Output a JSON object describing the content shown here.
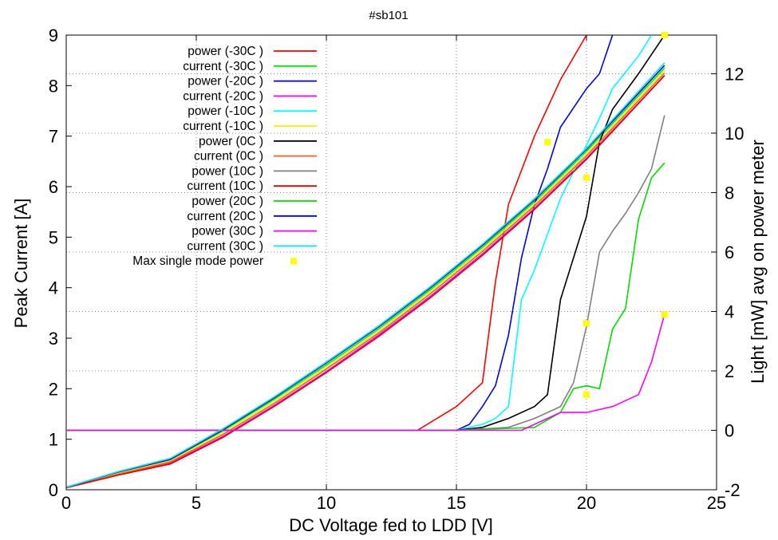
{
  "chart_data": {
    "type": "line",
    "title": "#sb101",
    "xlabel": "DC Voltage fed to LDD [V]",
    "ylabel": "Peak Current [A]",
    "y2label": "Light [mW] avg on power meter",
    "xlim": [
      0,
      25
    ],
    "ylim": [
      0,
      9
    ],
    "y2lim": [
      -2,
      13.3
    ],
    "xticks": [
      "0",
      "5",
      "10",
      "15",
      "20",
      "25"
    ],
    "yticks": [
      "0",
      "1",
      "2",
      "3",
      "4",
      "5",
      "6",
      "7",
      "8",
      "9"
    ],
    "y2ticks": [
      "-2",
      "0",
      "2",
      "4",
      "6",
      "8",
      "10",
      "12"
    ],
    "grid": true,
    "legend_position": "top-left",
    "series": [
      {
        "name": "power (-30C )",
        "color": "#ff0000",
        "axis": "y2",
        "x": [
          0,
          5,
          10,
          13.5,
          15,
          15.5,
          16,
          16.5,
          17,
          18,
          19,
          20
        ],
        "y": [
          0,
          0,
          0,
          0,
          0.8,
          1.2,
          1.6,
          5,
          7.6,
          9.9,
          11.8,
          13.3
        ]
      },
      {
        "name": "current (-30C )",
        "color": "#00ee00",
        "axis": "y1",
        "x": [
          0,
          2,
          4,
          6,
          8,
          10,
          12,
          14,
          16,
          18,
          20,
          23
        ],
        "y": [
          0.05,
          0.34,
          0.59,
          1.16,
          1.79,
          2.47,
          3.18,
          3.96,
          4.8,
          5.7,
          6.7,
          8.35
        ]
      },
      {
        "name": "power (-20C )",
        "color": "#0000ee",
        "axis": "y2",
        "x": [
          0,
          5,
          10,
          15,
          15.5,
          16,
          16.5,
          17,
          17.5,
          18,
          18.5,
          19,
          20,
          20.5,
          21
        ],
        "y": [
          0,
          0,
          0,
          0,
          0.2,
          0.8,
          1.5,
          3.2,
          5.8,
          7.6,
          8.8,
          10.2,
          11.5,
          12,
          13.3
        ]
      },
      {
        "name": "current (-20C )",
        "color": "#ff00ff",
        "axis": "y1",
        "x": [
          0,
          2,
          4,
          6,
          8,
          10,
          12,
          14,
          16,
          18,
          20,
          23
        ],
        "y": [
          0.04,
          0.3,
          0.53,
          1.05,
          1.67,
          2.34,
          3.06,
          3.83,
          4.67,
          5.57,
          6.56,
          8.2
        ]
      },
      {
        "name": "power (-10C )",
        "color": "#00ffff",
        "axis": "y2",
        "x": [
          0,
          5,
          10,
          15,
          16,
          16.5,
          17,
          17.5,
          18,
          18.5,
          19,
          20,
          20.5,
          21,
          22,
          22.5
        ],
        "y": [
          0,
          0,
          0,
          0,
          0.2,
          0.4,
          0.8,
          4.4,
          5.4,
          6.6,
          7.8,
          9.6,
          10.5,
          11.5,
          12.6,
          13.3
        ]
      },
      {
        "name": "current (-10C )",
        "color": "#f0f000",
        "axis": "y1",
        "x": [
          0,
          2,
          4,
          6,
          8,
          10,
          12,
          14,
          16,
          18,
          20,
          23
        ],
        "y": [
          0.05,
          0.33,
          0.57,
          1.13,
          1.75,
          2.43,
          3.14,
          3.92,
          4.76,
          5.66,
          6.65,
          8.3
        ]
      },
      {
        "name": "power (0C )",
        "color": "#000000",
        "axis": "y2",
        "x": [
          0,
          5,
          10,
          15,
          16,
          17,
          18,
          18.5,
          19,
          19.5,
          20,
          20.5,
          21,
          22,
          23
        ],
        "y": [
          0,
          0,
          0,
          0,
          0.1,
          0.4,
          0.8,
          1.2,
          4.4,
          5.8,
          7.2,
          9.7,
          10.8,
          12,
          13.3
        ]
      },
      {
        "name": "current (0C )",
        "color": "#ff6020",
        "axis": "y1",
        "x": [
          0,
          2,
          4,
          6,
          8,
          10,
          12,
          14,
          16,
          18,
          20,
          23
        ],
        "y": [
          0.04,
          0.31,
          0.55,
          1.09,
          1.71,
          2.39,
          3.1,
          3.88,
          4.72,
          5.62,
          6.61,
          8.25
        ]
      },
      {
        "name": "power (10C )",
        "color": "#808080",
        "axis": "y2",
        "x": [
          0,
          5,
          10,
          15,
          17,
          18,
          19,
          19.5,
          20,
          20.5,
          21,
          21.5,
          22,
          22.5,
          23
        ],
        "y": [
          0,
          0,
          0,
          0,
          0.1,
          0.4,
          0.8,
          1.6,
          3.5,
          6,
          6.7,
          7.3,
          8,
          8.8,
          10.6
        ]
      },
      {
        "name": "current (10C )",
        "color": "#dd0000",
        "axis": "y1",
        "x": [
          0,
          2,
          4,
          6,
          8,
          10,
          12,
          14,
          16,
          18,
          20,
          23
        ],
        "y": [
          0.04,
          0.29,
          0.51,
          1.03,
          1.65,
          2.32,
          3.03,
          3.8,
          4.64,
          5.55,
          6.54,
          8.2
        ]
      },
      {
        "name": "power (20C )",
        "color": "#00dd00",
        "axis": "y2",
        "x": [
          0,
          5,
          10,
          15,
          18,
          19,
          19.5,
          20,
          20.5,
          21,
          21.5,
          22,
          22.5,
          23
        ],
        "y": [
          0,
          0,
          0,
          0,
          0.1,
          0.6,
          1.4,
          1.5,
          1.4,
          3.4,
          4.1,
          7.1,
          8.5,
          9
        ]
      },
      {
        "name": "current (20C )",
        "color": "#0000cc",
        "axis": "y1",
        "x": [
          0,
          2,
          4,
          6,
          8,
          10,
          12,
          14,
          16,
          18,
          20,
          23
        ],
        "y": [
          0.05,
          0.35,
          0.6,
          1.18,
          1.82,
          2.51,
          3.22,
          4,
          4.84,
          5.74,
          6.74,
          8.4
        ]
      },
      {
        "name": "power (30C )",
        "color": "#ff00ff",
        "axis": "y2",
        "x": [
          0,
          5,
          10,
          15,
          17.5,
          18,
          18.5,
          19,
          20,
          20.5,
          21,
          22,
          22.5,
          23
        ],
        "y": [
          0,
          0,
          0,
          0,
          0,
          0.2,
          0.4,
          0.6,
          0.6,
          0.7,
          0.8,
          1.2,
          2.3,
          3.9
        ]
      },
      {
        "name": "current (30C )",
        "color": "#00e5ff",
        "axis": "y1",
        "x": [
          0,
          2,
          4,
          6,
          8,
          10,
          12,
          14,
          16,
          18,
          20,
          23
        ],
        "y": [
          0.05,
          0.36,
          0.62,
          1.2,
          1.84,
          2.53,
          3.24,
          4.02,
          4.86,
          5.76,
          6.76,
          8.45
        ]
      }
    ],
    "markers": {
      "name": "Max single mode power",
      "color": "#ffff00",
      "axis": "y2",
      "x": [
        18.5,
        20,
        20,
        20,
        23,
        23
      ],
      "y": [
        9.7,
        8.5,
        3.6,
        1.2,
        13.3,
        3.9
      ]
    }
  }
}
